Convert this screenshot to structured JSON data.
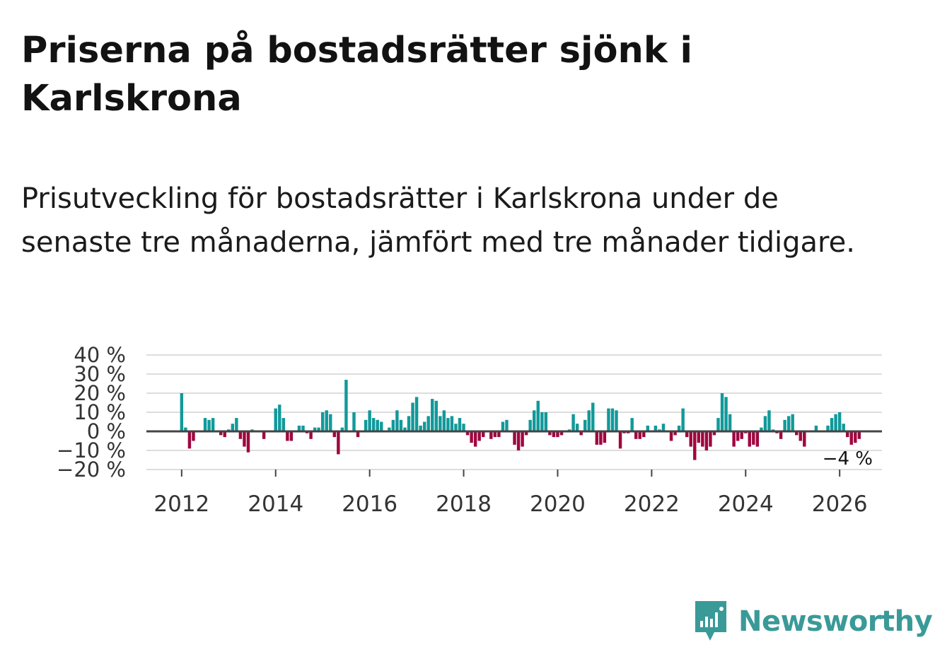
{
  "title": "Priserna på bostadsrätter sjönk i Karlskrona",
  "subtitle": "Prisutveckling för bostadsrätter i Karlskrona under de senaste tre månaderna, jämfört med tre månader tidigare.",
  "brand": {
    "name": "Newsworthy",
    "color": "#3a9a98",
    "icon": "newsworthy-logo-icon"
  },
  "colors": {
    "positive": "#11999a",
    "negative": "#a0063f",
    "zero_line": "#444444",
    "grid": "#dddddd"
  },
  "chart_data": {
    "type": "bar",
    "title": "Prisutveckling för bostadsrätter i Karlskrona",
    "xlabel": "",
    "ylabel": "",
    "ylim": [
      -20,
      40
    ],
    "y_ticks": [
      40,
      30,
      20,
      10,
      0,
      -10,
      -20
    ],
    "y_tick_labels": [
      "40 %",
      "30 %",
      "20 %",
      "10 %",
      "0 %",
      "−10 %",
      "−20 %"
    ],
    "x_ticks": [
      2012,
      2014,
      2016,
      2018,
      2020,
      2022,
      2024,
      2026
    ],
    "x_tick_labels": [
      "2012",
      "2014",
      "2016",
      "2018",
      "2020",
      "2022",
      "2024",
      "2026"
    ],
    "x_range": [
      2011.25,
      2026.9
    ],
    "start": 2012.0,
    "step": 0.08333,
    "unit": "%",
    "last_label": "−4 %",
    "values": [
      20,
      2,
      -9,
      -5,
      0,
      0,
      7,
      6,
      7,
      0,
      -2,
      -3,
      1,
      4,
      7,
      -4,
      -8,
      -11,
      1,
      0,
      0,
      -4,
      0,
      0,
      12,
      14,
      7,
      -5,
      -5,
      0,
      3,
      3,
      -1,
      -4,
      2,
      2,
      10,
      11,
      9,
      -3,
      -12,
      2,
      27,
      0,
      10,
      -3,
      0,
      6,
      11,
      7,
      6,
      5,
      0,
      2,
      6,
      11,
      6,
      2,
      8,
      15,
      18,
      3,
      5,
      8,
      17,
      16,
      8,
      11,
      7,
      8,
      4,
      7,
      4,
      -2,
      -6,
      -8,
      -5,
      -3,
      0,
      -4,
      -3,
      -3,
      5,
      6,
      0,
      -7,
      -10,
      -8,
      -2,
      6,
      11,
      16,
      10,
      10,
      -2,
      -3,
      -3,
      -2,
      0,
      1,
      9,
      4,
      -2,
      6,
      11,
      15,
      -7,
      -7,
      -6,
      12,
      12,
      11,
      -9,
      -1,
      -1,
      7,
      -4,
      -4,
      -3,
      3,
      0,
      3,
      1,
      4,
      0,
      -5,
      -2,
      3,
      12,
      -3,
      -8,
      -15,
      -6,
      -8,
      -10,
      -8,
      -2,
      7,
      20,
      18,
      9,
      -8,
      -5,
      -4,
      -1,
      -8,
      -7,
      -8,
      2,
      8,
      11,
      1,
      -1,
      -4,
      6,
      8,
      9,
      -2,
      -5,
      -8,
      0,
      0,
      3,
      0,
      0,
      3,
      7,
      9,
      10,
      4,
      -3,
      -7,
      -6,
      -4
    ]
  }
}
